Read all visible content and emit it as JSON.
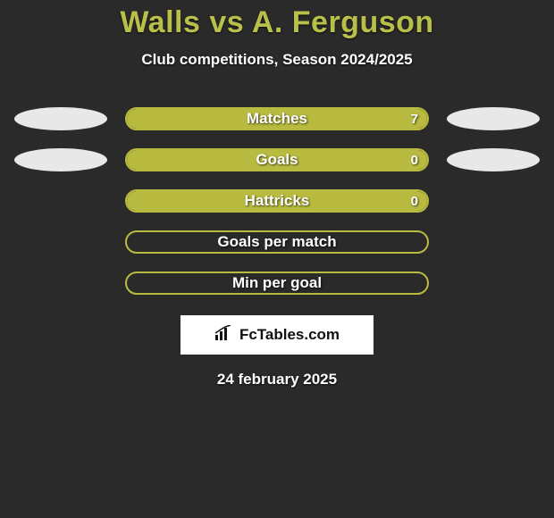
{
  "title": "Walls vs A. Ferguson",
  "subtitle": "Club competitions, Season 2024/2025",
  "colors": {
    "accent": "#b8bb3f",
    "accent_border": "#b8bb3f",
    "ellipse_left": "#e8e8e8",
    "ellipse_right": "#e8e8e8",
    "background": "#2a2a2a",
    "title_color": "#b9c04a"
  },
  "rows": [
    {
      "label": "Matches",
      "value": "7",
      "fill_pct": 100,
      "show_value": true,
      "left_ellipse": true,
      "right_ellipse": true
    },
    {
      "label": "Goals",
      "value": "0",
      "fill_pct": 100,
      "show_value": true,
      "left_ellipse": true,
      "right_ellipse": true
    },
    {
      "label": "Hattricks",
      "value": "0",
      "fill_pct": 100,
      "show_value": true,
      "left_ellipse": false,
      "right_ellipse": false
    },
    {
      "label": "Goals per match",
      "value": "",
      "fill_pct": 0,
      "show_value": false,
      "left_ellipse": false,
      "right_ellipse": false
    },
    {
      "label": "Min per goal",
      "value": "",
      "fill_pct": 0,
      "show_value": false,
      "left_ellipse": false,
      "right_ellipse": false
    }
  ],
  "brand": "FcTables.com",
  "date": "24 february 2025"
}
